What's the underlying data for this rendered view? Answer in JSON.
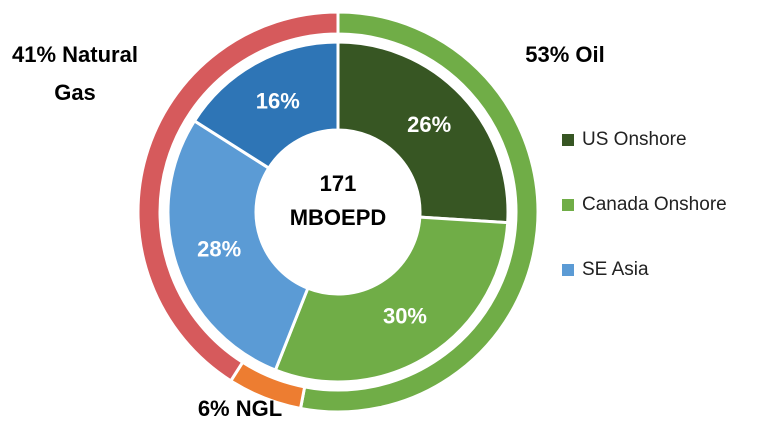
{
  "chart_data": {
    "type": "nested-donut",
    "center_label": [
      "171",
      "MBOEPD"
    ],
    "inner": {
      "categories": [
        "US Onshore",
        "Canada Onshore",
        "SE Asia",
        null
      ],
      "values": [
        26,
        30,
        28,
        16
      ],
      "value_labels": [
        "26%",
        "30%",
        "28%",
        "16%"
      ],
      "colors": [
        "#375623",
        "#70ad47",
        "#5b9bd5",
        "#2e75b6"
      ]
    },
    "outer": {
      "categories": [
        "Oil",
        "NGL",
        "Natural Gas"
      ],
      "values": [
        53,
        6,
        41
      ],
      "value_labels": [
        "53% Oil",
        "6% NGL",
        "41% Natural Gas"
      ],
      "colors": [
        "#70ad47",
        "#ed7d31",
        "#d65a5c"
      ]
    },
    "legend": "right"
  }
}
